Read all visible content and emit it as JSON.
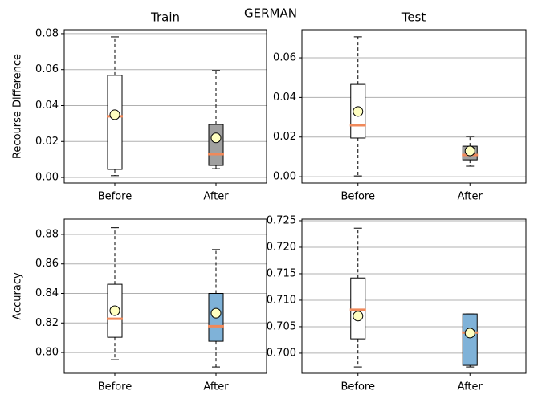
{
  "title": "GERMAN",
  "chart_data": [
    {
      "type": "box",
      "title": "Train",
      "ylabel": "Recourse Difference",
      "categories": [
        "Before",
        "After"
      ],
      "boxes": [
        {
          "whislo": 0.001,
          "q1": 0.0045,
          "median": 0.034,
          "q3": 0.0568,
          "whishi": 0.0782,
          "mean": 0.0349,
          "color": "#ffffff"
        },
        {
          "whislo": 0.0049,
          "q1": 0.0067,
          "median": 0.013,
          "q3": 0.0295,
          "whishi": 0.0595,
          "mean": 0.022,
          "color": "#a0a0a0"
        }
      ],
      "median_color": "#f0895a",
      "mean_color": "#ffffc0",
      "ylim": [
        -0.0031,
        0.0822
      ],
      "yticks": [
        {
          "value": 0,
          "label": "0.00"
        },
        0.02,
        0.04,
        0.06,
        0.08
      ],
      "grid": true
    },
    {
      "type": "box",
      "title": "Test",
      "categories": [
        "Before",
        "After"
      ],
      "boxes": [
        {
          "whislo": 0.0004,
          "q1": 0.0195,
          "median": 0.026,
          "q3": 0.0466,
          "whishi": 0.0706,
          "mean": 0.0329,
          "color": "#ffffff"
        },
        {
          "whislo": 0.0053,
          "q1": 0.0085,
          "median": 0.011,
          "q3": 0.0154,
          "whishi": 0.0203,
          "mean": 0.013,
          "color": "#a0a0a0"
        }
      ],
      "median_color": "#f0895a",
      "mean_color": "#ffffc0",
      "ylim": [
        -0.0032,
        0.0742
      ],
      "yticks": [
        {
          "value": 0,
          "label": "0.00"
        },
        0.02,
        0.04,
        0.06
      ],
      "grid": true
    },
    {
      "type": "box",
      "ylabel": "Accuracy",
      "categories": [
        "Before",
        "After"
      ],
      "boxes": [
        {
          "whislo": 0.7951,
          "q1": 0.8103,
          "median": 0.8228,
          "q3": 0.8462,
          "whishi": 0.8845,
          "mean": 0.8283,
          "color": "#ffffff"
        },
        {
          "whislo": 0.7902,
          "q1": 0.8076,
          "median": 0.8178,
          "q3": 0.84,
          "whishi": 0.8697,
          "mean": 0.8266,
          "color": "#7fb2d8"
        }
      ],
      "median_color": "#f0895a",
      "mean_color": "#ffffc0",
      "ylim": [
        0.7859,
        0.8903
      ],
      "yticks": [
        {
          "value": 0.8,
          "label": "0.80"
        },
        0.82,
        0.84,
        0.86,
        0.88
      ],
      "grid": true
    },
    {
      "type": "box",
      "categories": [
        "Before",
        "After"
      ],
      "boxes": [
        {
          "whislo": 0.6974,
          "q1": 0.7027,
          "median": 0.7082,
          "q3": 0.7142,
          "whishi": 0.7236,
          "mean": 0.707,
          "color": "#ffffff"
        },
        {
          "whislo": 0.6974,
          "q1": 0.6977,
          "median": 0.7039,
          "q3": 0.7074,
          "whishi": 0.7074,
          "mean": 0.7038,
          "color": "#7fb2d8"
        }
      ],
      "median_color": "#f0895a",
      "mean_color": "#ffffc0",
      "ylim": [
        0.6962,
        0.7253
      ],
      "yticks": [
        {
          "value": 0.7,
          "label": "0.700"
        },
        0.705,
        {
          "value": 0.71,
          "label": "0.710"
        },
        0.715,
        {
          "value": 0.72,
          "label": "0.720"
        },
        0.725
      ],
      "grid": true
    }
  ]
}
